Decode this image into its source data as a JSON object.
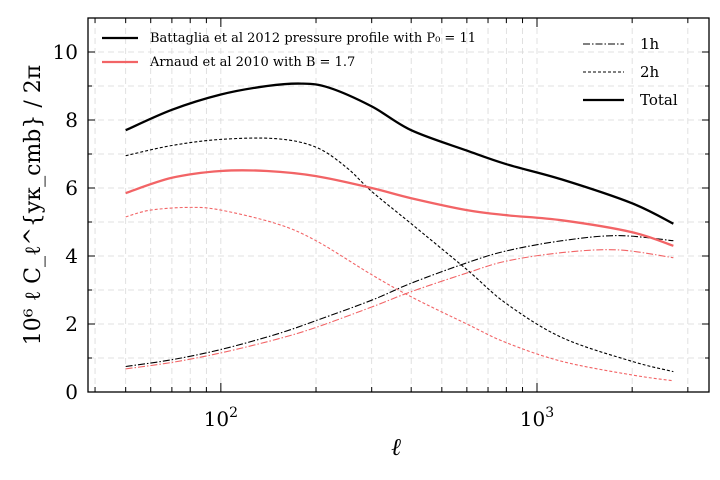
{
  "chart_data": {
    "type": "line",
    "xscale": "log",
    "xlim": [
      38,
      3500
    ],
    "ylim": [
      0,
      11
    ],
    "xlabel": "ℓ",
    "ylabel": "10⁶ ℓ C_ℓ^{yκ_cmb} / 2π",
    "xtick_labels": [
      {
        "value": 100,
        "base": "10",
        "exp": "2"
      },
      {
        "value": 1000,
        "base": "10",
        "exp": "3"
      }
    ],
    "yticks": [
      0,
      2,
      4,
      6,
      8,
      10
    ],
    "grid": true,
    "color_legend": [
      {
        "label": "Battaglia et al 2012 pressure profile with P₀ = 11",
        "color": "#000000"
      },
      {
        "label": "Arnaud et al 2010 with B = 1.7",
        "color": "#f26466"
      }
    ],
    "style_legend": [
      {
        "label": "1h",
        "dash": "dashdot"
      },
      {
        "label": "2h",
        "dash": "dashed"
      },
      {
        "label": "Total",
        "dash": "solid"
      }
    ],
    "series": [
      {
        "name": "Battaglia Total",
        "color": "#000000",
        "style": "solid",
        "x": [
          50,
          70,
          100,
          140,
          180,
          220,
          300,
          400,
          600,
          800,
          1200,
          2000,
          2700
        ],
        "y": [
          7.7,
          8.3,
          8.75,
          9.0,
          9.07,
          8.95,
          8.4,
          7.7,
          7.1,
          6.7,
          6.25,
          5.55,
          4.95
        ]
      },
      {
        "name": "Battaglia 1h",
        "color": "#000000",
        "style": "dashdot",
        "x": [
          50,
          70,
          100,
          150,
          200,
          300,
          400,
          600,
          800,
          1200,
          1800,
          2700
        ],
        "y": [
          0.75,
          0.95,
          1.25,
          1.7,
          2.1,
          2.7,
          3.2,
          3.8,
          4.15,
          4.45,
          4.6,
          4.45
        ]
      },
      {
        "name": "Battaglia 2h",
        "color": "#000000",
        "style": "dashed",
        "x": [
          50,
          70,
          100,
          150,
          200,
          250,
          300,
          400,
          600,
          800,
          1200,
          2000,
          2700
        ],
        "y": [
          6.95,
          7.25,
          7.43,
          7.45,
          7.2,
          6.6,
          5.9,
          4.95,
          3.6,
          2.6,
          1.6,
          0.9,
          0.6
        ]
      },
      {
        "name": "Arnaud Total",
        "color": "#f26466",
        "style": "solid",
        "x": [
          50,
          70,
          100,
          140,
          200,
          300,
          400,
          600,
          800,
          1200,
          2000,
          2700
        ],
        "y": [
          5.85,
          6.3,
          6.5,
          6.5,
          6.35,
          6.0,
          5.7,
          5.35,
          5.2,
          5.05,
          4.7,
          4.3
        ]
      },
      {
        "name": "Arnaud 1h",
        "color": "#f26466",
        "style": "dashdot",
        "x": [
          50,
          70,
          100,
          150,
          200,
          300,
          400,
          600,
          800,
          1200,
          1800,
          2700
        ],
        "y": [
          0.68,
          0.87,
          1.15,
          1.55,
          1.9,
          2.5,
          2.95,
          3.5,
          3.85,
          4.1,
          4.18,
          3.95
        ]
      },
      {
        "name": "Arnaud 2h",
        "color": "#f26466",
        "style": "dashed",
        "x": [
          50,
          60,
          80,
          100,
          150,
          200,
          300,
          400,
          600,
          800,
          1200,
          2000,
          2700
        ],
        "y": [
          5.15,
          5.35,
          5.43,
          5.35,
          4.95,
          4.45,
          3.45,
          2.8,
          2.0,
          1.45,
          0.9,
          0.5,
          0.33
        ]
      }
    ]
  }
}
